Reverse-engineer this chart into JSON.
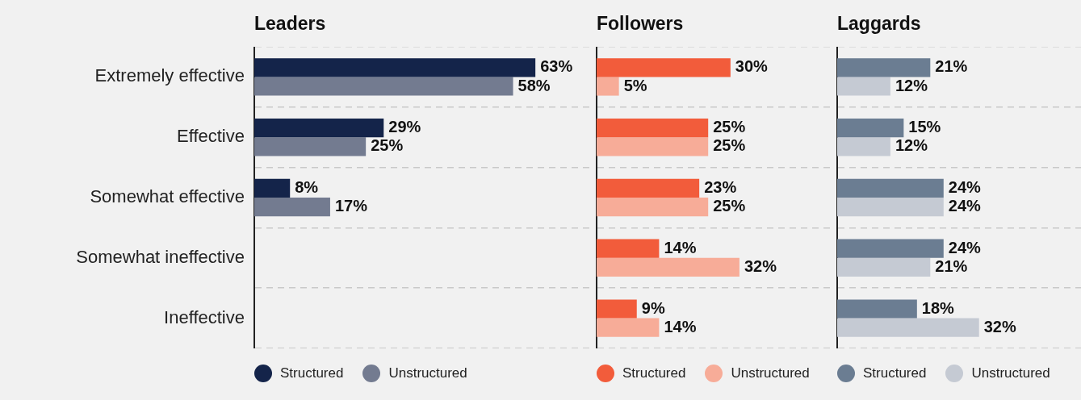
{
  "chart_data": [
    {
      "type": "bar",
      "orientation": "horizontal",
      "title": "Leaders",
      "categories": [
        "Extremely effective",
        "Effective",
        "Somewhat effective",
        "Somewhat ineffective",
        "Ineffective"
      ],
      "xlim": [
        0,
        76
      ],
      "tick_labels": "y",
      "grid": "y",
      "legend": "bottom",
      "series": [
        {
          "name": "Structured",
          "color": "#14244a",
          "values": [
            63,
            29,
            8,
            null,
            null
          ],
          "value_labels": [
            "63%",
            "29%",
            "8%",
            null,
            null
          ]
        },
        {
          "name": "Unstructured",
          "color": "#737b90",
          "values": [
            58,
            25,
            17,
            null,
            null
          ],
          "value_labels": [
            "58%",
            "25%",
            "17%",
            null,
            null
          ]
        }
      ]
    },
    {
      "type": "bar",
      "orientation": "horizontal",
      "title": "Followers",
      "categories": [
        null,
        null,
        null,
        null,
        null
      ],
      "xlim": [
        0,
        53
      ],
      "tick_labels": false,
      "grid": "y",
      "legend": "bottom",
      "series": [
        {
          "name": "Structured",
          "color": "#f25c3b",
          "values": [
            30,
            25,
            23,
            14,
            9
          ],
          "value_labels": [
            "30%",
            "25%",
            "23%",
            "14%",
            "9%"
          ]
        },
        {
          "name": "Unstructured",
          "color": "#f7ac98",
          "values": [
            5,
            25,
            25,
            32,
            14
          ],
          "value_labels": [
            "5%",
            "25%",
            "25%",
            "32%",
            "14%"
          ]
        }
      ]
    },
    {
      "type": "bar",
      "orientation": "horizontal",
      "title": "Laggards",
      "categories": [
        null,
        null,
        null,
        null,
        null
      ],
      "xlim": [
        0,
        55
      ],
      "tick_labels": false,
      "grid": "y",
      "legend": "bottom",
      "series": [
        {
          "name": "Structured",
          "color": "#6b7d92",
          "values": [
            21,
            15,
            24,
            24,
            18
          ],
          "value_labels": [
            "21%",
            "15%",
            "24%",
            "24%",
            "18%"
          ]
        },
        {
          "name": "Unstructured",
          "color": "#c5cad3",
          "values": [
            12,
            12,
            24,
            21,
            32
          ],
          "value_labels": [
            "12%",
            "12%",
            "24%",
            "21%",
            "32%"
          ]
        }
      ]
    }
  ]
}
